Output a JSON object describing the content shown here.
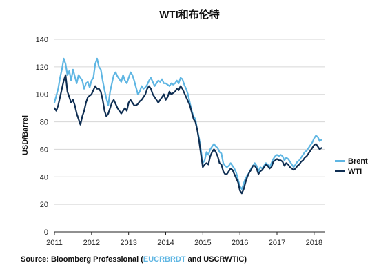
{
  "chart_data": {
    "type": "line",
    "title": "WTI和布伦特",
    "xlabel": "",
    "ylabel": "USD/Barrel",
    "xlim": [
      2011,
      2018.3
    ],
    "ylim": [
      0,
      140
    ],
    "x_ticks": [
      "2011",
      "2012",
      "2013",
      "2014",
      "2015",
      "2016",
      "2017",
      "2018"
    ],
    "y_ticks": [
      "0",
      "20",
      "40",
      "60",
      "80",
      "100",
      "120",
      "140"
    ],
    "grid": "horizontal",
    "legend_position": "right",
    "series": [
      {
        "name": "Brent",
        "color": "#5fb6e3",
        "x": [
          2011.0,
          2011.05,
          2011.1,
          2011.15,
          2011.2,
          2011.25,
          2011.3,
          2011.35,
          2011.4,
          2011.45,
          2011.5,
          2011.55,
          2011.6,
          2011.65,
          2011.7,
          2011.75,
          2011.8,
          2011.85,
          2011.9,
          2011.95,
          2012.0,
          2012.05,
          2012.1,
          2012.15,
          2012.2,
          2012.25,
          2012.3,
          2012.35,
          2012.4,
          2012.45,
          2012.5,
          2012.55,
          2012.6,
          2012.65,
          2012.7,
          2012.75,
          2012.8,
          2012.85,
          2012.9,
          2012.95,
          2013.0,
          2013.05,
          2013.1,
          2013.15,
          2013.2,
          2013.25,
          2013.3,
          2013.35,
          2013.4,
          2013.45,
          2013.5,
          2013.55,
          2013.6,
          2013.65,
          2013.7,
          2013.75,
          2013.8,
          2013.85,
          2013.9,
          2013.95,
          2014.0,
          2014.05,
          2014.1,
          2014.15,
          2014.2,
          2014.25,
          2014.3,
          2014.35,
          2014.4,
          2014.45,
          2014.5,
          2014.55,
          2014.6,
          2014.65,
          2014.7,
          2014.75,
          2014.8,
          2014.85,
          2014.9,
          2014.95,
          2015.0,
          2015.05,
          2015.1,
          2015.15,
          2015.2,
          2015.25,
          2015.3,
          2015.35,
          2015.4,
          2015.45,
          2015.5,
          2015.55,
          2015.6,
          2015.65,
          2015.7,
          2015.75,
          2015.8,
          2015.85,
          2015.9,
          2015.95,
          2016.0,
          2016.05,
          2016.1,
          2016.15,
          2016.2,
          2016.25,
          2016.3,
          2016.35,
          2016.4,
          2016.45,
          2016.5,
          2016.55,
          2016.6,
          2016.65,
          2016.7,
          2016.75,
          2016.8,
          2016.85,
          2016.9,
          2016.95,
          2017.0,
          2017.05,
          2017.1,
          2017.15,
          2017.2,
          2017.25,
          2017.3,
          2017.35,
          2017.4,
          2017.45,
          2017.5,
          2017.55,
          2017.6,
          2017.65,
          2017.7,
          2017.75,
          2017.8,
          2017.85,
          2017.9,
          2017.95,
          2018.0,
          2018.05,
          2018.1,
          2018.15,
          2018.2
        ],
        "values": [
          94,
          99,
          104,
          112,
          118,
          126,
          122,
          114,
          117,
          110,
          118,
          113,
          108,
          114,
          112,
          110,
          104,
          108,
          109,
          105,
          110,
          112,
          122,
          126,
          120,
          118,
          110,
          103,
          97,
          92,
          102,
          108,
          114,
          116,
          113,
          111,
          109,
          114,
          110,
          108,
          112,
          116,
          114,
          110,
          105,
          100,
          102,
          106,
          104,
          105,
          107,
          110,
          112,
          109,
          106,
          108,
          110,
          109,
          111,
          108,
          108,
          107,
          106,
          108,
          107,
          108,
          110,
          108,
          112,
          111,
          107,
          104,
          100,
          94,
          88,
          84,
          82,
          74,
          68,
          59,
          50,
          52,
          58,
          56,
          60,
          62,
          64,
          62,
          61,
          58,
          57,
          50,
          48,
          47,
          48,
          50,
          48,
          46,
          43,
          38,
          33,
          31,
          35,
          39,
          41,
          43,
          46,
          48,
          50,
          48,
          44,
          47,
          46,
          48,
          50,
          49,
          47,
          50,
          53,
          55,
          56,
          55,
          56,
          55,
          52,
          54,
          53,
          51,
          49,
          47,
          49,
          51,
          52,
          54,
          56,
          58,
          59,
          61,
          63,
          65,
          68,
          70,
          69,
          66,
          67
        ]
      },
      {
        "name": "WTI",
        "color": "#0f2e52",
        "x": [
          2011.0,
          2011.05,
          2011.1,
          2011.15,
          2011.2,
          2011.25,
          2011.3,
          2011.35,
          2011.4,
          2011.45,
          2011.5,
          2011.55,
          2011.6,
          2011.65,
          2011.7,
          2011.75,
          2011.8,
          2011.85,
          2011.9,
          2011.95,
          2012.0,
          2012.05,
          2012.1,
          2012.15,
          2012.2,
          2012.25,
          2012.3,
          2012.35,
          2012.4,
          2012.45,
          2012.5,
          2012.55,
          2012.6,
          2012.65,
          2012.7,
          2012.75,
          2012.8,
          2012.85,
          2012.9,
          2012.95,
          2013.0,
          2013.05,
          2013.1,
          2013.15,
          2013.2,
          2013.25,
          2013.3,
          2013.35,
          2013.4,
          2013.45,
          2013.5,
          2013.55,
          2013.6,
          2013.65,
          2013.7,
          2013.75,
          2013.8,
          2013.85,
          2013.9,
          2013.95,
          2014.0,
          2014.05,
          2014.1,
          2014.15,
          2014.2,
          2014.25,
          2014.3,
          2014.35,
          2014.4,
          2014.45,
          2014.5,
          2014.55,
          2014.6,
          2014.65,
          2014.7,
          2014.75,
          2014.8,
          2014.85,
          2014.9,
          2014.95,
          2015.0,
          2015.05,
          2015.1,
          2015.15,
          2015.2,
          2015.25,
          2015.3,
          2015.35,
          2015.4,
          2015.45,
          2015.5,
          2015.55,
          2015.6,
          2015.65,
          2015.7,
          2015.75,
          2015.8,
          2015.85,
          2015.9,
          2015.95,
          2016.0,
          2016.05,
          2016.1,
          2016.15,
          2016.2,
          2016.25,
          2016.3,
          2016.35,
          2016.4,
          2016.45,
          2016.5,
          2016.55,
          2016.6,
          2016.65,
          2016.7,
          2016.75,
          2016.8,
          2016.85,
          2016.9,
          2016.95,
          2017.0,
          2017.05,
          2017.1,
          2017.15,
          2017.2,
          2017.25,
          2017.3,
          2017.35,
          2017.4,
          2017.45,
          2017.5,
          2017.55,
          2017.6,
          2017.65,
          2017.7,
          2017.75,
          2017.8,
          2017.85,
          2017.9,
          2017.95,
          2018.0,
          2018.05,
          2018.1,
          2018.15,
          2018.2
        ],
        "values": [
          90,
          88,
          92,
          98,
          104,
          110,
          114,
          102,
          98,
          94,
          96,
          92,
          86,
          82,
          78,
          84,
          88,
          94,
          98,
          99,
          100,
          103,
          106,
          104,
          104,
          102,
          96,
          88,
          84,
          86,
          90,
          94,
          96,
          93,
          90,
          88,
          86,
          88,
          90,
          88,
          94,
          96,
          94,
          92,
          92,
          93,
          95,
          96,
          98,
          100,
          104,
          106,
          104,
          100,
          98,
          96,
          94,
          96,
          98,
          100,
          96,
          98,
          102,
          100,
          101,
          102,
          104,
          103,
          106,
          104,
          101,
          98,
          95,
          92,
          87,
          82,
          80,
          74,
          66,
          56,
          47,
          49,
          50,
          49,
          55,
          58,
          60,
          58,
          55,
          50,
          49,
          44,
          42,
          42,
          44,
          46,
          45,
          42,
          39,
          36,
          30,
          28,
          31,
          36,
          40,
          43,
          45,
          48,
          48,
          46,
          42,
          44,
          45,
          47,
          49,
          48,
          46,
          47,
          51,
          52,
          53,
          52,
          52,
          51,
          48,
          50,
          49,
          47,
          46,
          45,
          46,
          48,
          49,
          51,
          52,
          54,
          55,
          57,
          59,
          61,
          63,
          64,
          62,
          60,
          61
        ]
      }
    ],
    "source": {
      "prefix": "Source: Bloomberg Professional (",
      "highlight": "EUCRBRDT",
      "suffix": " and USCRWTIC)"
    }
  }
}
